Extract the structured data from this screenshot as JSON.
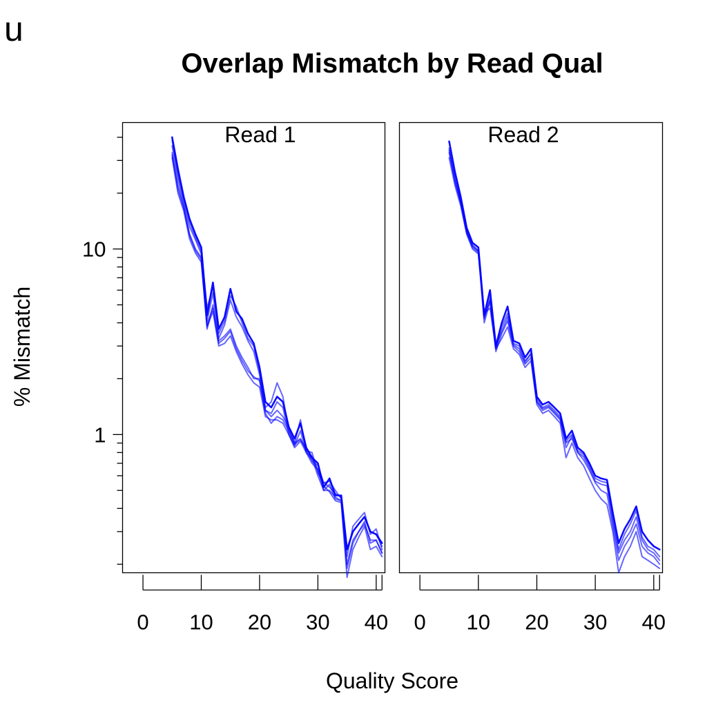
{
  "panel_letter": "u",
  "chart_data": {
    "type": "line",
    "title": "Overlap Mismatch by Read Qual",
    "xlabel": "Quality Score",
    "ylabel": "% Mismatch",
    "y_scale": "log",
    "ylim": [
      0.18,
      48
    ],
    "y_ticks": [
      1,
      10
    ],
    "y_tick_labels": [
      "1",
      "10"
    ],
    "x_ticks": [
      0,
      10,
      20,
      30,
      40
    ],
    "x_tick_labels": [
      "0",
      "10",
      "20",
      "30",
      "40"
    ],
    "x_extra_tick": 41,
    "xlim": [
      -3.5,
      41.5
    ],
    "line_color": "#0000ff",
    "grid": false,
    "panels": [
      {
        "strip": "Read 1",
        "x": [
          5,
          6,
          7,
          8,
          9,
          10,
          11,
          12,
          13,
          14,
          15,
          16,
          17,
          18,
          19,
          20,
          21,
          22,
          23,
          24,
          25,
          26,
          27,
          28,
          29,
          30,
          31,
          32,
          33,
          34,
          35,
          36,
          37,
          38,
          39,
          40,
          41
        ],
        "series": [
          {
            "values": [
              40.0,
              27.0,
              19.0,
              14.5,
              12.0,
              10.2,
              4.4,
              6.6,
              3.7,
              4.3,
              6.1,
              4.6,
              4.2,
              3.5,
              3.1,
              2.3,
              1.5,
              1.4,
              1.6,
              1.5,
              1.1,
              0.95,
              1.15,
              0.85,
              0.75,
              0.7,
              0.52,
              0.58,
              0.47,
              0.47,
              0.24,
              0.3,
              0.33,
              0.36,
              0.3,
              0.29,
              0.26
            ]
          },
          {
            "values": [
              38.5,
              25.5,
              18.5,
              14.0,
              11.5,
              9.8,
              4.8,
              6.2,
              3.5,
              4.1,
              5.6,
              4.9,
              4.0,
              3.3,
              3.0,
              2.2,
              1.4,
              1.5,
              1.9,
              1.6,
              1.05,
              0.9,
              1.2,
              0.82,
              0.72,
              0.68,
              0.55,
              0.56,
              0.5,
              0.45,
              0.22,
              0.32,
              0.35,
              0.38,
              0.29,
              0.31,
              0.24
            ]
          },
          {
            "values": [
              36.0,
              24.0,
              17.5,
              13.2,
              11.2,
              9.4,
              4.1,
              5.8,
              3.3,
              3.9,
              5.3,
              4.3,
              3.8,
              3.2,
              2.8,
              2.1,
              1.35,
              1.3,
              1.5,
              1.4,
              1.0,
              0.87,
              1.05,
              0.8,
              0.7,
              0.65,
              0.5,
              0.54,
              0.45,
              0.44,
              0.2,
              0.27,
              0.3,
              0.33,
              0.27,
              0.27,
              0.23
            ]
          },
          {
            "values": [
              33.0,
              22.0,
              17.0,
              12.0,
              10.0,
              9.0,
              3.7,
              5.0,
              3.2,
              3.4,
              3.7,
              3.0,
              2.6,
              2.3,
              2.0,
              2.0,
              1.35,
              1.25,
              1.35,
              1.25,
              1.1,
              0.9,
              0.95,
              0.82,
              0.8,
              0.62,
              0.55,
              0.52,
              0.48,
              0.46,
              0.24,
              0.3,
              0.33,
              0.36,
              0.3,
              0.29,
              0.25
            ]
          },
          {
            "values": [
              31.0,
              20.0,
              16.0,
              11.3,
              9.5,
              8.5,
              3.8,
              4.6,
              3.0,
              3.1,
              3.4,
              2.8,
              2.4,
              2.1,
              1.9,
              1.8,
              1.25,
              1.2,
              1.2,
              1.15,
              1.0,
              0.85,
              0.92,
              0.8,
              0.74,
              0.6,
              0.5,
              0.5,
              0.46,
              0.44,
              0.19,
              0.26,
              0.3,
              0.34,
              0.26,
              0.27,
              0.23
            ]
          },
          {
            "values": [
              32.0,
              21.0,
              16.5,
              11.8,
              9.8,
              8.8,
              3.9,
              4.8,
              3.1,
              3.3,
              3.6,
              2.9,
              2.5,
              2.2,
              2.05,
              1.95,
              1.3,
              1.15,
              1.25,
              1.2,
              1.05,
              0.88,
              0.94,
              0.84,
              0.76,
              0.64,
              0.53,
              0.49,
              0.44,
              0.43,
              0.17,
              0.24,
              0.28,
              0.32,
              0.24,
              0.25,
              0.22
            ]
          }
        ]
      },
      {
        "strip": "Read 2",
        "x": [
          5,
          6,
          7,
          8,
          9,
          10,
          11,
          12,
          13,
          14,
          15,
          16,
          17,
          18,
          19,
          20,
          21,
          22,
          23,
          24,
          25,
          26,
          27,
          28,
          29,
          30,
          31,
          32,
          33,
          34,
          35,
          36,
          37,
          38,
          39,
          40,
          41
        ],
        "series": [
          {
            "values": [
              38.0,
              26.0,
              19.0,
              13.0,
              10.8,
              10.2,
              4.4,
              6.0,
              3.0,
              4.0,
              4.9,
              3.2,
              3.1,
              2.6,
              2.9,
              1.6,
              1.45,
              1.5,
              1.4,
              1.3,
              0.95,
              1.05,
              0.85,
              0.8,
              0.7,
              0.6,
              0.58,
              0.57,
              0.38,
              0.26,
              0.31,
              0.35,
              0.41,
              0.3,
              0.27,
              0.25,
              0.24
            ]
          },
          {
            "values": [
              35.0,
              24.5,
              18.0,
              12.5,
              10.5,
              9.8,
              4.2,
              5.5,
              2.9,
              3.8,
              4.5,
              3.1,
              3.0,
              2.5,
              2.7,
              1.55,
              1.4,
              1.45,
              1.35,
              1.25,
              0.92,
              1.0,
              0.82,
              0.78,
              0.68,
              0.58,
              0.56,
              0.55,
              0.36,
              0.24,
              0.29,
              0.33,
              0.39,
              0.28,
              0.25,
              0.24,
              0.22
            ]
          },
          {
            "values": [
              33.0,
              23.0,
              17.5,
              12.2,
              10.2,
              9.6,
              4.0,
              5.2,
              2.8,
              3.5,
              4.1,
              3.0,
              2.8,
              2.4,
              2.6,
              1.5,
              1.35,
              1.4,
              1.3,
              1.2,
              0.9,
              0.95,
              0.8,
              0.76,
              0.66,
              0.56,
              0.54,
              0.53,
              0.34,
              0.23,
              0.27,
              0.3,
              0.36,
              0.27,
              0.24,
              0.23,
              0.21
            ]
          },
          {
            "values": [
              31.0,
              22.0,
              17.0,
              12.0,
              10.0,
              9.4,
              4.5,
              4.8,
              2.9,
              3.3,
              3.8,
              2.9,
              2.7,
              2.3,
              2.5,
              1.45,
              1.3,
              1.35,
              1.25,
              1.15,
              0.75,
              0.9,
              0.75,
              0.68,
              0.58,
              0.5,
              0.45,
              0.42,
              0.3,
              0.18,
              0.22,
              0.25,
              0.3,
              0.22,
              0.21,
              0.2,
              0.19
            ]
          },
          {
            "values": [
              34.0,
              23.5,
              17.8,
              12.4,
              10.4,
              9.7,
              4.3,
              5.3,
              3.0,
              3.6,
              4.3,
              3.05,
              2.9,
              2.45,
              2.75,
              1.5,
              1.38,
              1.42,
              1.32,
              1.22,
              0.85,
              0.98,
              0.8,
              0.73,
              0.64,
              0.55,
              0.5,
              0.48,
              0.32,
              0.21,
              0.25,
              0.28,
              0.33,
              0.25,
              0.23,
              0.22,
              0.2
            ]
          }
        ]
      }
    ]
  }
}
